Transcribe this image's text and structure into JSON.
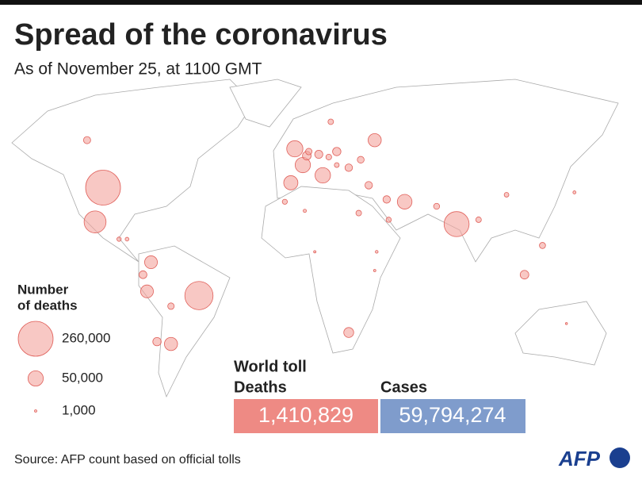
{
  "title": "Spread of the coronavirus",
  "subtitle": "As of November 25, at 1100 GMT",
  "legend": {
    "title": [
      "Number",
      "of deaths"
    ],
    "entries": [
      {
        "value": 260000,
        "label": "260,000"
      },
      {
        "value": 50000,
        "label": "50,000"
      },
      {
        "value": 1000,
        "label": "1,000"
      }
    ]
  },
  "bubbles": {
    "lon": [
      -98,
      -102,
      -50,
      79,
      -2,
      2,
      12,
      -4,
      38,
      53,
      -64,
      -74,
      -76,
      25,
      10,
      19,
      4,
      31,
      35,
      113,
      -71,
      -106,
      122,
      30,
      44,
      45,
      -78,
      -64,
      90,
      69,
      104,
      138,
      134,
      25,
      5,
      -90,
      -86,
      -7,
      3,
      16,
      38,
      39,
      8,
      19,
      15
    ],
    "lat": [
      38,
      23,
      -12,
      22,
      53,
      47,
      43,
      40,
      56,
      32,
      -34,
      4,
      -10,
      -29,
      51,
      52,
      50.5,
      49,
      39,
      -2,
      -33,
      56,
      12,
      27,
      33,
      24,
      -2,
      -17,
      24,
      30,
      35,
      36,
      -25,
      46,
      52,
      15,
      15,
      32,
      28,
      62,
      0,
      9,
      9,
      47,
      50
    ],
    "deaths": [
      260000,
      103000,
      170000,
      134000,
      56000,
      50000,
      51000,
      43000,
      37000,
      46000,
      37000,
      35000,
      35000,
      21000,
      14000,
      15000,
      16000,
      10000,
      12000,
      16000,
      15000,
      11000,
      8000,
      6700,
      11800,
      5800,
      13000,
      9000,
      6600,
      7800,
      4700,
      2000,
      907,
      12000,
      9000,
      4000,
      3000,
      5500,
      2200,
      6600,
      1200,
      1700,
      1170,
      5000,
      7000
    ]
  },
  "toll": {
    "title": "World toll",
    "deaths_label": "Deaths",
    "deaths": "1,410,829",
    "cases_label": "Cases",
    "cases": "59,794,274"
  },
  "source": "Source: AFP count based on official tolls",
  "logo": "AFP"
}
